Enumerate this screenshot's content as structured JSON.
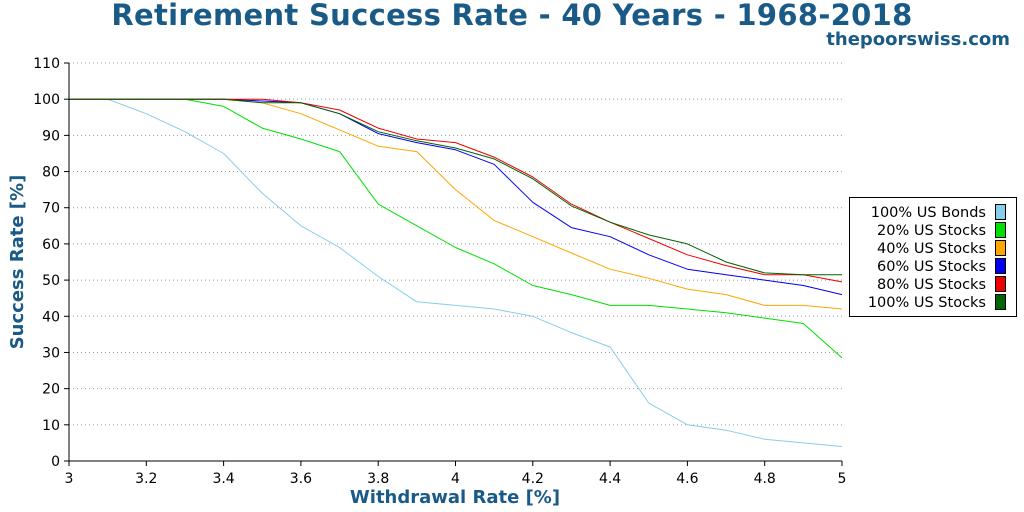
{
  "chart_data": {
    "type": "line",
    "title": "Retirement Success Rate - 40 Years - 1968-2018",
    "subtitle": "thepoorswiss.com",
    "xlabel": "Withdrawal Rate [%]",
    "ylabel": "Success Rate [%]",
    "xlim": [
      3,
      5
    ],
    "ylim": [
      0,
      110
    ],
    "x_ticks": [
      "3",
      "3.2",
      "3.4",
      "3.6",
      "3.8",
      "4",
      "4.2",
      "4.4",
      "4.6",
      "4.8",
      "5"
    ],
    "y_ticks": [
      "0",
      "10",
      "20",
      "30",
      "40",
      "50",
      "60",
      "70",
      "80",
      "90",
      "100",
      "110"
    ],
    "grid": "horizontal dotted",
    "legend_position": "right",
    "x": [
      3.0,
      3.1,
      3.2,
      3.3,
      3.4,
      3.5,
      3.6,
      3.7,
      3.8,
      3.9,
      4.0,
      4.1,
      4.2,
      4.3,
      4.4,
      4.5,
      4.6,
      4.7,
      4.8,
      4.9,
      5.0
    ],
    "series": [
      {
        "name": "100% US Bonds",
        "color": "#87ceeb",
        "values": [
          100,
          100,
          96,
          91,
          85,
          74,
          65,
          59,
          51,
          44,
          43,
          42,
          40,
          35.5,
          31.5,
          16,
          10,
          8.5,
          6,
          5,
          4
        ]
      },
      {
        "name": "20% US Stocks",
        "color": "#00e000",
        "values": [
          100,
          100,
          100,
          100,
          98,
          92,
          89,
          85.5,
          71,
          65,
          59,
          54.5,
          48.5,
          46,
          43,
          43,
          42,
          41,
          39.5,
          38,
          28.5
        ]
      },
      {
        "name": "40% US Stocks",
        "color": "#ffa500",
        "values": [
          100,
          100,
          100,
          100,
          100,
          99,
          96,
          91.5,
          87,
          85.5,
          75,
          66.5,
          62,
          57.5,
          53,
          50.5,
          47.5,
          46,
          43,
          43,
          42
        ]
      },
      {
        "name": "60% US Stocks",
        "color": "#0000ee",
        "values": [
          100,
          100,
          100,
          100,
          100,
          99.5,
          99,
          96,
          90.5,
          88,
          86,
          82,
          71.5,
          64.5,
          62,
          57,
          53,
          51.5,
          50,
          48.5,
          46
        ]
      },
      {
        "name": "80% US Stocks",
        "color": "#ee0000",
        "values": [
          100,
          100,
          100,
          100,
          100,
          100,
          99,
          97,
          92,
          89,
          88,
          84,
          78.5,
          71,
          66,
          61.5,
          57,
          54,
          51.5,
          51.5,
          49.5
        ]
      },
      {
        "name": "100% US Stocks",
        "color": "#006400",
        "values": [
          100,
          100,
          100,
          100,
          100,
          99,
          99,
          96,
          91,
          88.5,
          86.5,
          83.5,
          78,
          70.5,
          66,
          62.5,
          60,
          55,
          52,
          51.5,
          51.5
        ]
      }
    ]
  }
}
